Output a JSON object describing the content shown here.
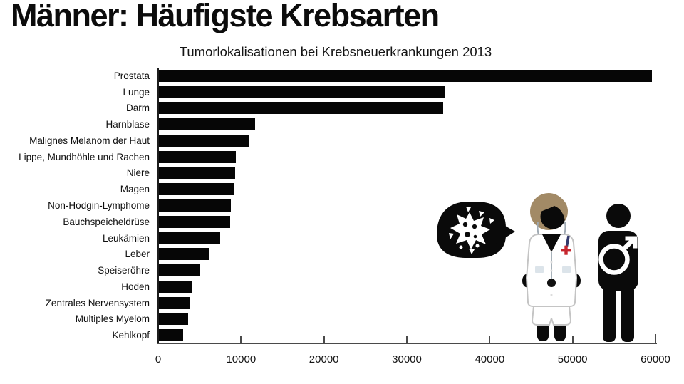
{
  "page": {
    "title": "Männer: Häufigste Krebsarten",
    "subtitle": "Tumorlokalisationen bei Krebsneuerkrankungen 2013"
  },
  "chart_data": {
    "type": "bar",
    "orientation": "horizontal",
    "title": "Männer: Häufigste Krebsarten",
    "subtitle": "Tumorlokalisationen bei Krebsneuerkrankungen 2013",
    "categories": [
      "Prostata",
      "Lunge",
      "Darm",
      "Harnblase",
      "Malignes Melanom der Haut",
      "Lippe, Mundhöhle und Rachen",
      "Niere",
      "Magen",
      "Non-Hodgin-Lymphome",
      "Bauchspeicheldrüse",
      "Leukämien",
      "Leber",
      "Speiseröhre",
      "Hoden",
      "Zentrales Nervensystem",
      "Multiples Myelom",
      "Kehlkopf"
    ],
    "values": [
      59600,
      34600,
      34400,
      11700,
      10900,
      9400,
      9300,
      9200,
      8800,
      8700,
      7500,
      6100,
      5100,
      4000,
      3900,
      3600,
      3000
    ],
    "xlabel": "",
    "ylabel": "",
    "xlim": [
      0,
      60000
    ],
    "x_ticks": [
      0,
      10000,
      20000,
      30000,
      40000,
      50000,
      60000
    ],
    "x_tick_labels": [
      "0",
      "10000",
      "20000",
      "30000",
      "40000",
      "50000",
      "60000"
    ],
    "grid": false,
    "legend": null,
    "bar_color": "#060606"
  },
  "icons": {
    "speech_bubble": "cancer-cell-speech-bubble",
    "doctor": "doctor-figure",
    "male": "male-figure-with-mars-symbol"
  },
  "colors": {
    "bar": "#060606",
    "axis": "#4a4a4a",
    "figure_black": "#0a0a0a",
    "hair_brown": "#a28a66",
    "cross_red": "#c6262e",
    "pen_navy": "#333a6b",
    "coat_outline": "#c4c4c4",
    "pocket_gray": "#dce4ea",
    "tube_gray": "#9fa9b2"
  }
}
